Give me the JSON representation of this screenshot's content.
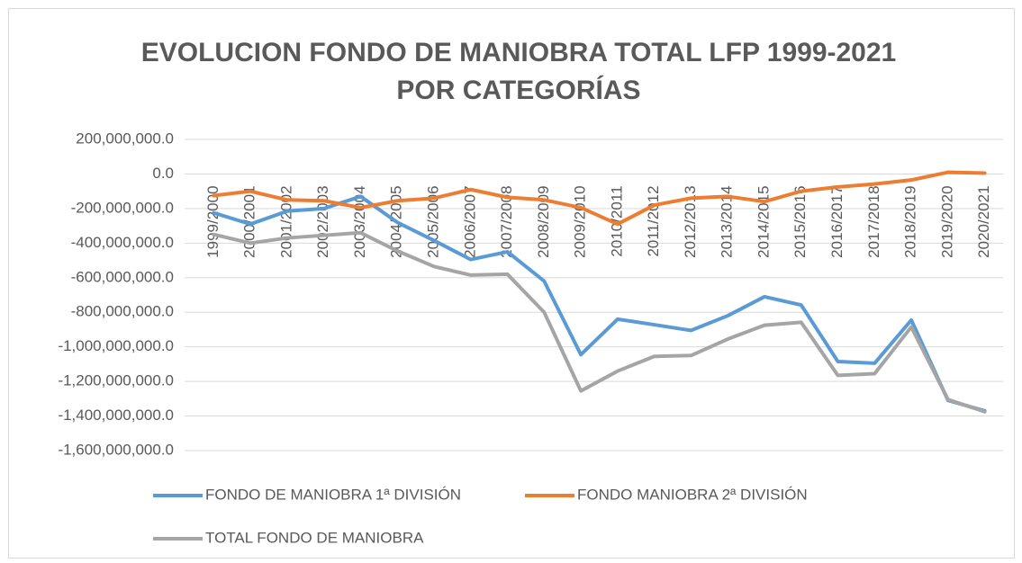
{
  "chart_data": {
    "type": "line",
    "title": [
      "EVOLUCION FONDO DE MANIOBRA TOTAL LFP 1999-2021",
      "POR CATEGORÍAS"
    ],
    "categories": [
      "1999/2000",
      "2000/2001",
      "2001/2002",
      "2002/2003",
      "2003/2004",
      "2004/2005",
      "2005/2006",
      "2006/2007",
      "2007/2008",
      "2008/2009",
      "2009/2010",
      "2010/2011",
      "2011/2012",
      "2012/2013",
      "2013/2014",
      "2014/2015",
      "2015/2016",
      "2016/2017",
      "2017/2018",
      "2018/2019",
      "2019/2020",
      "2020/2021"
    ],
    "series": [
      {
        "name": "FONDO DE MANIOBRA 1ª DIVISIÓN",
        "color": "#5b9bd5",
        "values": [
          -225000000,
          -290000000,
          -215000000,
          -200000000,
          -130000000,
          -280000000,
          -385000000,
          -495000000,
          -450000000,
          -620000000,
          -1045000000,
          -840000000,
          -872000000,
          -905000000,
          -820000000,
          -710000000,
          -758000000,
          -1085000000,
          -1095000000,
          -845000000,
          -1310000000,
          -1370000000
        ]
      },
      {
        "name": "FONDO MANIOBRA 2ª DIVISIÓN",
        "color": "#ed7d31",
        "values": [
          -125000000,
          -100000000,
          -150000000,
          -155000000,
          -195000000,
          -155000000,
          -140000000,
          -90000000,
          -135000000,
          -150000000,
          -195000000,
          -290000000,
          -180000000,
          -140000000,
          -130000000,
          -160000000,
          -100000000,
          -75000000,
          -58000000,
          -35000000,
          10000000,
          5000000
        ]
      },
      {
        "name": "TOTAL FONDO DE MANIOBRA",
        "color": "#a5a5a5",
        "values": [
          -350000000,
          -400000000,
          -370000000,
          -355000000,
          -340000000,
          -445000000,
          -535000000,
          -585000000,
          -580000000,
          -800000000,
          -1255000000,
          -1140000000,
          -1055000000,
          -1050000000,
          -955000000,
          -875000000,
          -858000000,
          -1165000000,
          -1155000000,
          -885000000,
          -1305000000,
          -1375000000
        ]
      }
    ],
    "ylim": [
      -1600000000,
      200000000
    ],
    "yticks": [
      {
        "value": 200000000,
        "label": "200,000,000.0"
      },
      {
        "value": 0,
        "label": "0.0"
      },
      {
        "value": -200000000,
        "label": "-200,000,000.0"
      },
      {
        "value": -400000000,
        "label": "-400,000,000.0"
      },
      {
        "value": -600000000,
        "label": "-600,000,000.0"
      },
      {
        "value": -800000000,
        "label": "-800,000,000.0"
      },
      {
        "value": -1000000000,
        "label": "-1,000,000,000.0"
      },
      {
        "value": -1200000000,
        "label": "-1,200,000,000.0"
      },
      {
        "value": -1400000000,
        "label": "-1,400,000,000.0"
      },
      {
        "value": -1600000000,
        "label": "-1,600,000,000.0"
      }
    ],
    "grid": true,
    "legend": "bottom"
  }
}
